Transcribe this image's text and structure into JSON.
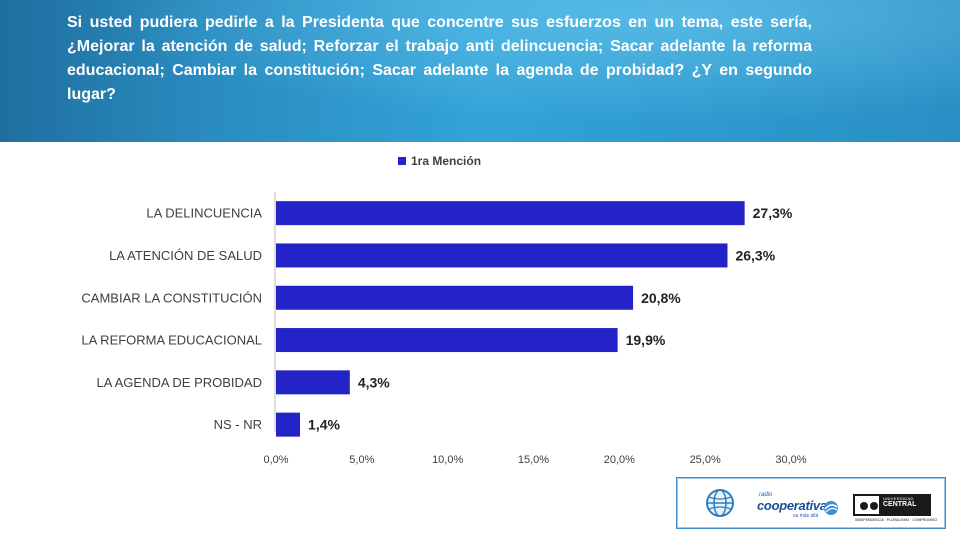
{
  "header": {
    "question": "Si usted pudiera pedirle a la Presidenta que concentre sus esfuerzos en un tema, este sería, ¿Mejorar la atención de salud; Reforzar el trabajo anti delincuencia; Sacar adelante la reforma educacional; Cambiar la constitución; Sacar adelante la agenda de probidad?  ¿Y en segundo lugar?"
  },
  "chart_data": {
    "type": "bar",
    "orientation": "horizontal",
    "categories": [
      "LA DELINCUENCIA",
      "LA ATENCIÓN DE SALUD",
      "CAMBIAR LA CONSTITUCIÓN",
      "LA REFORMA EDUCACIONAL",
      "LA AGENDA DE PROBIDAD",
      "NS - NR"
    ],
    "series": [
      {
        "name": "1ra Mención",
        "values": [
          27.3,
          26.3,
          20.8,
          19.9,
          4.3,
          1.4
        ],
        "color": "#2323c8"
      }
    ],
    "data_labels": [
      "27,3%",
      "26,3%",
      "20,8%",
      "19,9%",
      "4,3%",
      "1,4%"
    ],
    "x_ticks": [
      "0,0%",
      "5,0%",
      "10,0%",
      "15,0%",
      "20,0%",
      "25,0%",
      "30,0%"
    ],
    "xlim": [
      0,
      30
    ],
    "legend": "top-center",
    "grid": false
  },
  "logos": {
    "radio_small": "radio",
    "radio_name": "cooperativa",
    "radio_tagline": "va más allá",
    "university_line1": "UNIVERSIDAD",
    "university_line2": "CENTRAL",
    "university_motto": "INDEPENDENCIA · PLURALISMO · COMPROMISO"
  }
}
